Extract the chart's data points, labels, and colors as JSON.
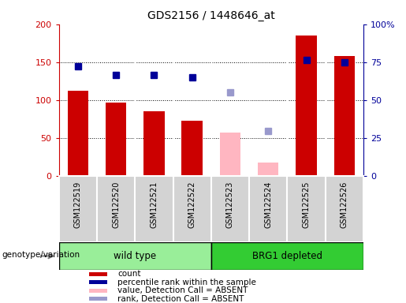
{
  "title": "GDS2156 / 1448646_at",
  "samples": [
    "GSM122519",
    "GSM122520",
    "GSM122521",
    "GSM122522",
    "GSM122523",
    "GSM122524",
    "GSM122525",
    "GSM122526"
  ],
  "count_values": [
    112,
    97,
    85,
    73,
    null,
    null,
    185,
    158
  ],
  "count_absent": [
    null,
    null,
    null,
    null,
    57,
    17,
    null,
    null
  ],
  "rank_values": [
    72.5,
    66.5,
    66.5,
    65.0,
    null,
    null,
    76.5,
    75.0
  ],
  "rank_absent": [
    null,
    null,
    null,
    null,
    55.0,
    29.5,
    null,
    null
  ],
  "ylim_left": [
    0,
    200
  ],
  "ylim_right": [
    0,
    100
  ],
  "left_yticks": [
    0,
    50,
    100,
    150,
    200
  ],
  "right_yticks": [
    0,
    25,
    50,
    75,
    100
  ],
  "right_yticklabels": [
    "0",
    "25",
    "50",
    "75",
    "100%"
  ],
  "wild_type_label": "wild type",
  "brg1_label": "BRG1 depleted",
  "genotype_label": "genotype/variation",
  "bar_color": "#cc0000",
  "bar_absent_color": "#ffb6c1",
  "rank_color": "#000099",
  "rank_absent_color": "#9999cc",
  "green_wt": "#99ee99",
  "green_brg1": "#33cc33",
  "legend_colors": [
    "#cc0000",
    "#000099",
    "#ffb6c1",
    "#9999cc"
  ],
  "legend_labels": [
    "count",
    "percentile rank within the sample",
    "value, Detection Call = ABSENT",
    "rank, Detection Call = ABSENT"
  ]
}
